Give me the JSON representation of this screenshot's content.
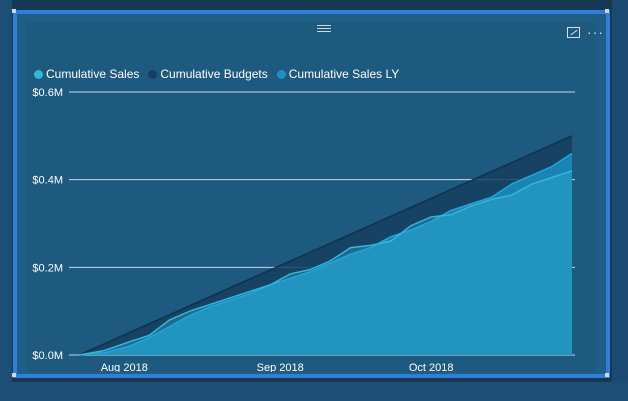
{
  "chart_data": {
    "type": "area",
    "legend_position": "top-left",
    "grid": true,
    "ylim": [
      0,
      0.6
    ],
    "y_ticks": [
      "$0.0M",
      "$0.2M",
      "$0.4M",
      "$0.6M"
    ],
    "y_tick_values": [
      0,
      0.2,
      0.4,
      0.6
    ],
    "x_ticks": [
      "Aug 2018",
      "Sep 2018",
      "Oct 2018"
    ],
    "x_tick_values": [
      "2018-08-01",
      "2018-09-01",
      "2018-10-01"
    ],
    "x_domain": [
      "2018-07-23",
      "2018-10-29"
    ],
    "series": [
      {
        "name": "Cumulative Sales",
        "color": "#30b8d8",
        "x": [
          "2018-07-23",
          "2018-07-28",
          "2018-08-02",
          "2018-08-06",
          "2018-08-10",
          "2018-08-14",
          "2018-08-18",
          "2018-08-22",
          "2018-08-26",
          "2018-08-30",
          "2018-09-03",
          "2018-09-07",
          "2018-09-11",
          "2018-09-15",
          "2018-09-19",
          "2018-09-23",
          "2018-09-27",
          "2018-10-01",
          "2018-10-05",
          "2018-10-09",
          "2018-10-13",
          "2018-10-17",
          "2018-10-21",
          "2018-10-25",
          "2018-10-29"
        ],
        "values": [
          0.0,
          0.01,
          0.03,
          0.045,
          0.08,
          0.1,
          0.115,
          0.13,
          0.145,
          0.16,
          0.185,
          0.195,
          0.215,
          0.245,
          0.25,
          0.26,
          0.295,
          0.315,
          0.32,
          0.34,
          0.355,
          0.365,
          0.39,
          0.405,
          0.42
        ]
      },
      {
        "name": "Cumulative Budgets",
        "color": "#153f5e",
        "x": [
          "2018-07-23",
          "2018-10-29"
        ],
        "values": [
          0.0,
          0.5
        ]
      },
      {
        "name": "Cumulative Sales LY",
        "color": "#1d92c8",
        "x": [
          "2018-07-23",
          "2018-07-28",
          "2018-08-02",
          "2018-08-06",
          "2018-08-10",
          "2018-08-14",
          "2018-08-18",
          "2018-08-22",
          "2018-08-26",
          "2018-08-30",
          "2018-09-03",
          "2018-09-07",
          "2018-09-11",
          "2018-09-15",
          "2018-09-19",
          "2018-09-23",
          "2018-09-27",
          "2018-10-01",
          "2018-10-05",
          "2018-10-09",
          "2018-10-13",
          "2018-10-17",
          "2018-10-21",
          "2018-10-25",
          "2018-10-29"
        ],
        "values": [
          0.0,
          0.005,
          0.02,
          0.04,
          0.065,
          0.09,
          0.11,
          0.125,
          0.14,
          0.16,
          0.175,
          0.19,
          0.21,
          0.23,
          0.245,
          0.27,
          0.285,
          0.305,
          0.33,
          0.345,
          0.36,
          0.39,
          0.41,
          0.43,
          0.46
        ]
      }
    ]
  },
  "ui": {
    "frame_color": "#2f7fd8",
    "plot_bg_color": "#1e5a80",
    "grid_color": "#d8e6f0",
    "text_color": "#ffffff",
    "more_label": "···"
  }
}
